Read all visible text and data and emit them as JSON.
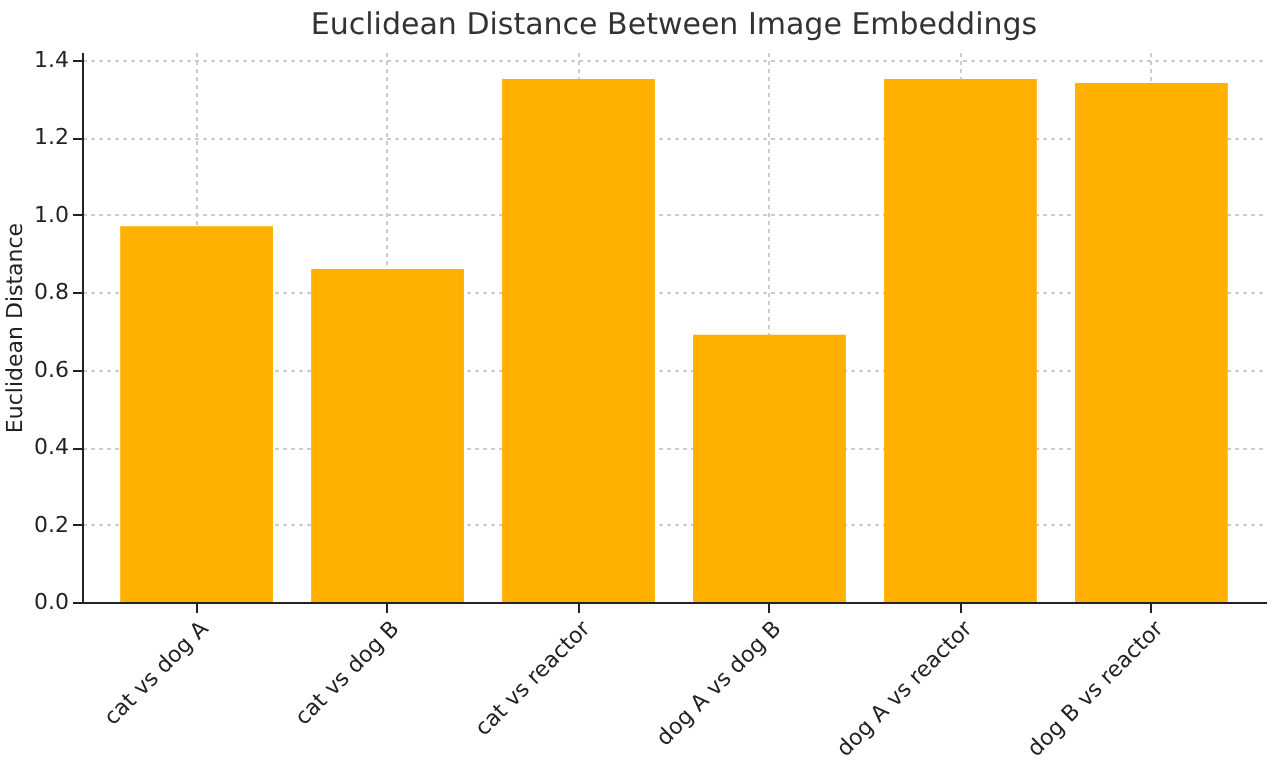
{
  "chart_data": {
    "type": "bar",
    "title": "Euclidean Distance Between Image Embeddings",
    "ylabel": "Euclidean Distance",
    "categories": [
      "cat vs dog A",
      "cat vs dog B",
      "cat vs reactor",
      "dog A vs dog B",
      "dog A vs reactor",
      "dog B vs reactor"
    ],
    "values": [
      0.97,
      0.86,
      1.35,
      0.69,
      1.35,
      1.34
    ],
    "color": "#ffb000",
    "ylim": [
      0,
      1.42
    ],
    "yticks": [
      {
        "value": 0,
        "label": "0.0"
      },
      0.2,
      0.4,
      0.6,
      0.8,
      {
        "value": 1,
        "label": "1.0"
      },
      1.2,
      1.4
    ],
    "grid": true
  }
}
